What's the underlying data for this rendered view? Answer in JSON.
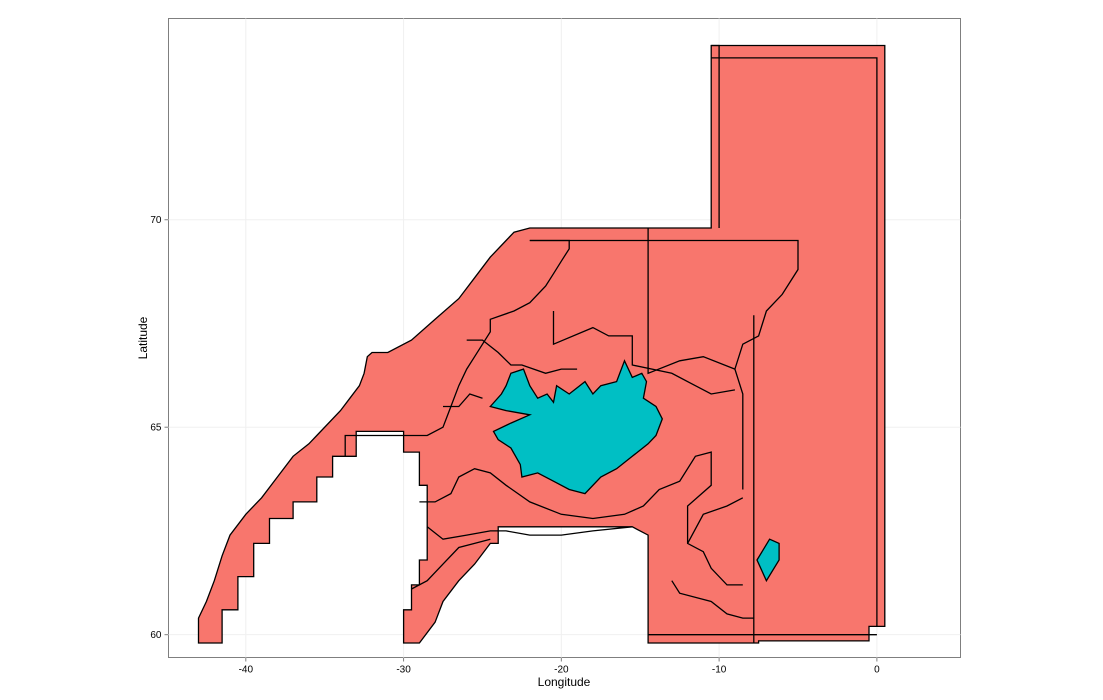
{
  "chart_data": {
    "type": "map",
    "xlabel": "Longitude",
    "ylabel": "Latitude",
    "xlim": [
      -44.9,
      5.3
    ],
    "ylim": [
      59.45,
      74.85
    ],
    "x_ticks": [
      -40,
      -30,
      -20,
      -10,
      0
    ],
    "y_ticks": [
      60,
      65,
      70
    ],
    "grid": true,
    "colors": {
      "fishing_area": "#F8766D",
      "land": "#00BFC4",
      "border": "#000000"
    },
    "layers": [
      {
        "name": "fishing-areas",
        "color": "#F8766D",
        "polygons": [
          [
            [
              -43,
              59.8
            ],
            [
              -41.5,
              59.8
            ],
            [
              -41.5,
              60.6
            ],
            [
              -40.5,
              60.6
            ],
            [
              -40.5,
              61.4
            ],
            [
              -39.5,
              61.4
            ],
            [
              -39.5,
              62.2
            ],
            [
              -38.5,
              62.2
            ],
            [
              -38.5,
              62.8
            ],
            [
              -37,
              62.8
            ],
            [
              -37,
              63.2
            ],
            [
              -35.5,
              63.2
            ],
            [
              -35.5,
              63.8
            ],
            [
              -34.5,
              63.8
            ],
            [
              -34.5,
              64.3
            ],
            [
              -33,
              64.3
            ],
            [
              -33,
              64.9
            ],
            [
              -30,
              64.9
            ],
            [
              -30,
              64.4
            ],
            [
              -29,
              64.4
            ],
            [
              -29,
              63.6
            ],
            [
              -28.5,
              63.6
            ],
            [
              -28.5,
              61.8
            ],
            [
              -29,
              61.8
            ],
            [
              -29,
              61.2
            ],
            [
              -29.5,
              61.2
            ],
            [
              -29.5,
              60.6
            ],
            [
              -30,
              60.6
            ],
            [
              -30,
              59.8
            ],
            [
              -29,
              59.8
            ],
            [
              -28,
              60.3
            ],
            [
              -27.5,
              60.8
            ],
            [
              -26.5,
              61.3
            ],
            [
              -25.5,
              61.7
            ],
            [
              -24.5,
              62.2
            ],
            [
              -24,
              62.2
            ],
            [
              -24,
              62.6
            ],
            [
              -15.5,
              62.6
            ],
            [
              -14.5,
              62.4
            ],
            [
              -14.5,
              59.8
            ],
            [
              -7.5,
              59.8
            ],
            [
              -7.5,
              59.85
            ],
            [
              -0.5,
              59.85
            ],
            [
              -0.5,
              60.2
            ],
            [
              0.5,
              60.2
            ],
            [
              0.5,
              74.2
            ],
            [
              -10.5,
              74.2
            ],
            [
              -10.5,
              69.8
            ],
            [
              -22,
              69.8
            ],
            [
              -23,
              69.7
            ],
            [
              -23.5,
              69.5
            ],
            [
              -24.5,
              69.1
            ],
            [
              -25.5,
              68.6
            ],
            [
              -26.5,
              68.1
            ],
            [
              -28,
              67.6
            ],
            [
              -29.5,
              67.1
            ],
            [
              -31,
              66.8
            ],
            [
              -32,
              66.8
            ],
            [
              -32.3,
              66.7
            ],
            [
              -32.5,
              66.3
            ],
            [
              -32.8,
              66
            ],
            [
              -33.4,
              65.7
            ],
            [
              -34,
              65.4
            ],
            [
              -35.5,
              64.8
            ],
            [
              -36,
              64.6
            ],
            [
              -37,
              64.3
            ],
            [
              -38,
              63.8
            ],
            [
              -39,
              63.3
            ],
            [
              -40,
              62.9
            ],
            [
              -41,
              62.4
            ],
            [
              -41.5,
              61.9
            ],
            [
              -42,
              61.3
            ],
            [
              -42.5,
              60.8
            ],
            [
              -43,
              60.4
            ]
          ]
        ]
      },
      {
        "name": "iceland",
        "color": "#00BFC4",
        "polygons": [
          [
            [
              -24.5,
              65.5
            ],
            [
              -23.8,
              65.8
            ],
            [
              -23.5,
              66
            ],
            [
              -23.2,
              66.3
            ],
            [
              -22.4,
              66.4
            ],
            [
              -22,
              66
            ],
            [
              -21.5,
              65.7
            ],
            [
              -20.9,
              65.8
            ],
            [
              -20.5,
              65.6
            ],
            [
              -20.3,
              66
            ],
            [
              -19.5,
              65.8
            ],
            [
              -18.5,
              66.1
            ],
            [
              -18,
              65.8
            ],
            [
              -17.5,
              66
            ],
            [
              -16.5,
              66.1
            ],
            [
              -16,
              66.6
            ],
            [
              -15.5,
              66.2
            ],
            [
              -14.9,
              66.3
            ],
            [
              -14.6,
              66.1
            ],
            [
              -14.8,
              65.7
            ],
            [
              -14,
              65.5
            ],
            [
              -13.6,
              65.2
            ],
            [
              -14,
              64.8
            ],
            [
              -14.5,
              64.6
            ],
            [
              -15.5,
              64.3
            ],
            [
              -16.5,
              64
            ],
            [
              -17.5,
              63.8
            ],
            [
              -18.5,
              63.4
            ],
            [
              -19.5,
              63.5
            ],
            [
              -20.5,
              63.7
            ],
            [
              -21.5,
              63.9
            ],
            [
              -22.5,
              63.8
            ],
            [
              -22.6,
              64.1
            ],
            [
              -23.2,
              64.5
            ],
            [
              -24,
              64.7
            ],
            [
              -24.3,
              64.9
            ],
            [
              -23.2,
              65.1
            ],
            [
              -22,
              65.3
            ],
            [
              -23.5,
              65.4
            ]
          ],
          [
            [
              -7.6,
              61.8
            ],
            [
              -6.8,
              62.3
            ],
            [
              -6.2,
              62.2
            ],
            [
              -6.2,
              61.8
            ],
            [
              -7,
              61.3
            ]
          ]
        ]
      }
    ],
    "boundaries": [
      [
        [
          -10.5,
          74.2
        ],
        [
          -10,
          74.2
        ],
        [
          -10,
          69.8
        ]
      ],
      [
        [
          -10.5,
          73.9
        ],
        [
          0,
          73.9
        ],
        [
          0,
          60.2
        ]
      ],
      [
        [
          -14.5,
          60
        ],
        [
          0,
          60
        ]
      ],
      [
        [
          -7.8,
          59.8
        ],
        [
          -7.8,
          67.7
        ]
      ],
      [
        [
          -22,
          69.5
        ],
        [
          -19.5,
          69.5
        ],
        [
          -19.5,
          69.3
        ],
        [
          -20,
          69
        ],
        [
          -20.5,
          68.7
        ],
        [
          -21,
          68.4
        ],
        [
          -22,
          68
        ],
        [
          -23,
          67.8
        ],
        [
          -24.5,
          67.6
        ],
        [
          -24.5,
          67.3
        ],
        [
          -25,
          67
        ],
        [
          -25.5,
          66.7
        ],
        [
          -26,
          66.4
        ],
        [
          -26.5,
          66
        ],
        [
          -27,
          65.5
        ],
        [
          -27.5,
          65
        ],
        [
          -28.5,
          64.8
        ],
        [
          -30.2,
          64.8
        ],
        [
          -33.7,
          64.8
        ],
        [
          -33.7,
          64.3
        ]
      ],
      [
        [
          -22,
          69.5
        ],
        [
          -5,
          69.5
        ],
        [
          -5,
          68.8
        ],
        [
          -6,
          68.2
        ],
        [
          -7,
          67.8
        ],
        [
          -7.5,
          67.2
        ],
        [
          -8.5,
          67
        ],
        [
          -9,
          66.4
        ],
        [
          -8.5,
          65.8
        ],
        [
          -8.5,
          64.2
        ],
        [
          -8.5,
          63.5
        ]
      ],
      [
        [
          -14.5,
          69.8
        ],
        [
          -14.5,
          66.3
        ],
        [
          -12.5,
          66.6
        ],
        [
          -11,
          66.7
        ],
        [
          -9,
          66.4
        ]
      ],
      [
        [
          -20.5,
          67.8
        ],
        [
          -20.5,
          67
        ],
        [
          -18,
          67.4
        ],
        [
          -17,
          67.2
        ],
        [
          -15.5,
          67.2
        ],
        [
          -15.5,
          66.5
        ],
        [
          -13,
          66.3
        ],
        [
          -11.5,
          66
        ],
        [
          -10.5,
          65.8
        ],
        [
          -9,
          65.9
        ]
      ],
      [
        [
          -26,
          67.1
        ],
        [
          -25,
          67.1
        ],
        [
          -24,
          66.8
        ],
        [
          -23.2,
          66.5
        ],
        [
          -22.5,
          66.5
        ],
        [
          -21,
          66.3
        ],
        [
          -20,
          66.4
        ],
        [
          -19,
          66.4
        ]
      ],
      [
        [
          -29,
          63.2
        ],
        [
          -28,
          63.2
        ],
        [
          -27,
          63.4
        ],
        [
          -26.5,
          63.8
        ],
        [
          -25.5,
          64
        ],
        [
          -24.5,
          63.9
        ],
        [
          -23.5,
          63.6
        ],
        [
          -22,
          63.2
        ],
        [
          -20,
          62.9
        ],
        [
          -18,
          62.8
        ],
        [
          -16,
          62.9
        ],
        [
          -14.8,
          63.1
        ],
        [
          -13.8,
          63.5
        ],
        [
          -12.5,
          63.7
        ],
        [
          -11.5,
          64.3
        ],
        [
          -10.5,
          64.4
        ],
        [
          -10.5,
          63.6
        ],
        [
          -12,
          63.1
        ],
        [
          -12,
          62.2
        ],
        [
          -11,
          62
        ],
        [
          -10.5,
          61.6
        ],
        [
          -9.5,
          61.2
        ],
        [
          -8.5,
          61.2
        ]
      ],
      [
        [
          -28.5,
          62.6
        ],
        [
          -27.5,
          62.3
        ],
        [
          -26,
          62.4
        ],
        [
          -24.5,
          62.5
        ],
        [
          -23.5,
          62.5
        ],
        [
          -22,
          62.4
        ],
        [
          -20,
          62.4
        ],
        [
          -18,
          62.5
        ],
        [
          -15.5,
          62.6
        ]
      ],
      [
        [
          -29.5,
          61.1
        ],
        [
          -28.5,
          61.3
        ],
        [
          -27.5,
          61.7
        ],
        [
          -26.5,
          62.1
        ],
        [
          -25.5,
          62.2
        ],
        [
          -24.5,
          62.3
        ]
      ],
      [
        [
          -12,
          62.2
        ],
        [
          -11,
          62.9
        ],
        [
          -9.5,
          63.1
        ],
        [
          -8.5,
          63.3
        ]
      ],
      [
        [
          -13,
          61.3
        ],
        [
          -12.5,
          61
        ],
        [
          -10.5,
          60.8
        ],
        [
          -9.5,
          60.5
        ],
        [
          -8.5,
          60.4
        ],
        [
          -7.8,
          60.4
        ]
      ],
      [
        [
          -27.5,
          65.5
        ],
        [
          -26.5,
          65.5
        ],
        [
          -25.8,
          65.8
        ],
        [
          -25,
          65.7
        ]
      ]
    ]
  }
}
